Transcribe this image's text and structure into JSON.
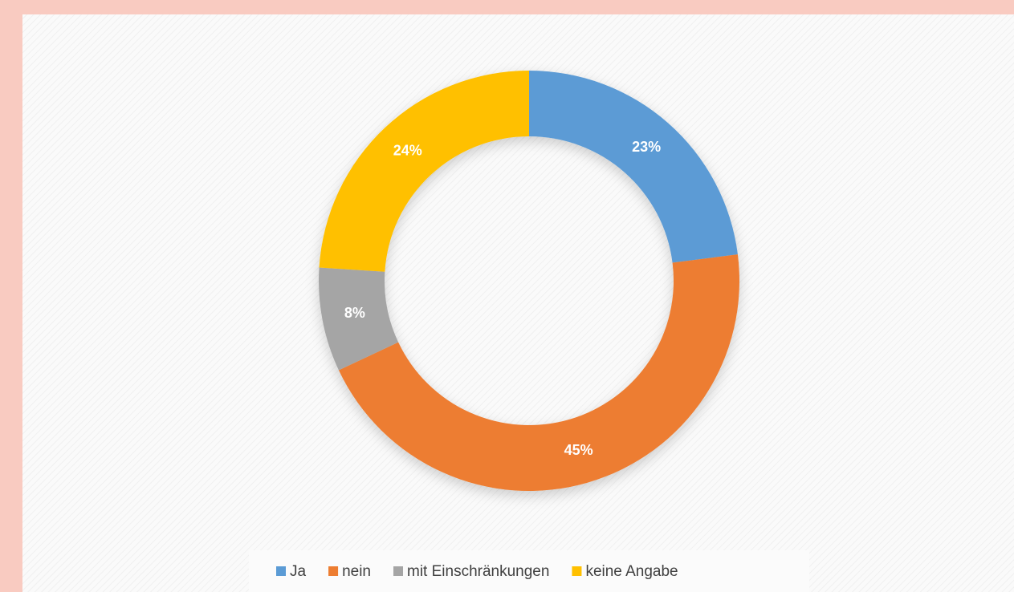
{
  "chart_data": {
    "type": "donut",
    "categories": [
      "Ja",
      "nein",
      "mit Einschränkungen",
      "keine Angabe"
    ],
    "values": [
      23,
      45,
      8,
      24
    ],
    "value_labels": [
      "23%",
      "45%",
      "8%",
      "24%"
    ],
    "colors": [
      "#5b9bd5",
      "#ed7d31",
      "#a5a5a5",
      "#ffc000"
    ],
    "legend": "bottom"
  }
}
